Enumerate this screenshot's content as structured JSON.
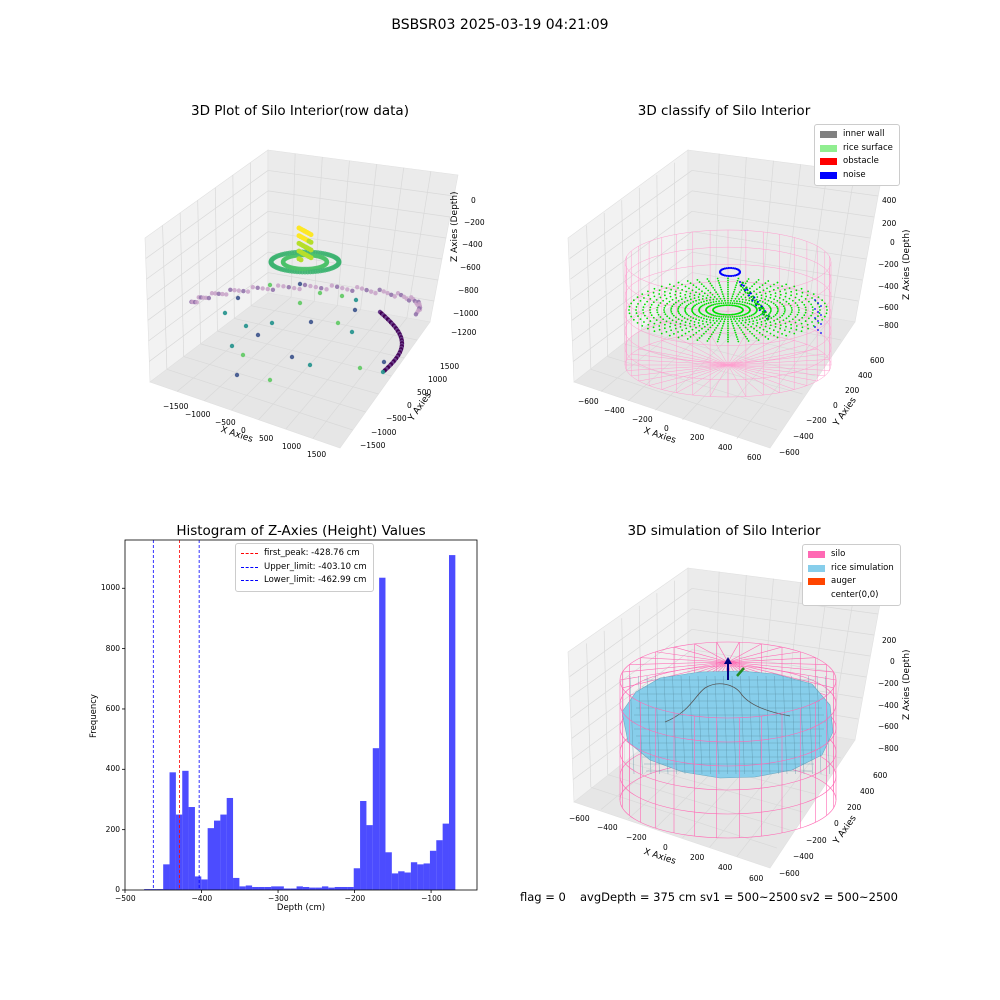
{
  "suptitle": "BSBSR03 2025-03-19 04:21:09",
  "footer": {
    "flag": "flag = 0",
    "avg_depth": "avgDepth = 375 cm",
    "sv1": "sv1 = 500~2500",
    "sv2": "sv2 = 500~2500"
  },
  "plot1": {
    "title": "3D Plot of Silo Interior(row data)",
    "xlabel": "X Axies",
    "ylabel": "Y Axies",
    "zlabel": "Z Axies (Depth)",
    "xticks": [
      "−1500",
      "−1000",
      "−500",
      "0",
      "500",
      "1000",
      "1500"
    ],
    "yticks": [
      "1500",
      "1000",
      "500",
      "0",
      "−500",
      "−1000",
      "−1500"
    ],
    "zticks": [
      "0",
      "−200",
      "−400",
      "−600",
      "−800",
      "−1000",
      "−1200"
    ]
  },
  "plot2": {
    "title": "3D classify of Silo Interior",
    "xlabel": "X Axies",
    "ylabel": "Y Axies",
    "zlabel": "Z Axies (Depth)",
    "xticks": [
      "−600",
      "−400",
      "−200",
      "0",
      "200",
      "400",
      "600"
    ],
    "yticks": [
      "600",
      "400",
      "200",
      "0",
      "−200",
      "−400",
      "−600"
    ],
    "zticks": [
      "400",
      "200",
      "0",
      "−200",
      "−400",
      "−600",
      "−800"
    ],
    "legend": [
      {
        "label": "inner wall",
        "color": "#808080"
      },
      {
        "label": "rice surface",
        "color": "#90ee90"
      },
      {
        "label": "obstacle",
        "color": "#ff0000"
      },
      {
        "label": "noise",
        "color": "#0000ff"
      }
    ]
  },
  "plot4": {
    "title": "3D simulation of Silo Interior",
    "xlabel": "X Axies",
    "ylabel": "Y Axies",
    "zlabel": "Z Axies (Depth)",
    "xticks": [
      "−600",
      "−400",
      "−200",
      "0",
      "200",
      "400",
      "600"
    ],
    "yticks": [
      "600",
      "400",
      "200",
      "0",
      "−200",
      "−400",
      "−600"
    ],
    "zticks": [
      "200",
      "0",
      "−200",
      "−400",
      "−600",
      "−800"
    ],
    "legend": [
      {
        "label": "silo",
        "color": "#ff69b4"
      },
      {
        "label": "rice simulation",
        "color": "#87ceeb"
      },
      {
        "label": "auger",
        "color": "#ff4500"
      },
      {
        "label": "center(0,0)",
        "color": ""
      }
    ]
  },
  "chart_data": {
    "type": "bar",
    "title": "Histogram of Z-Axies (Height) Values",
    "xlabel": "Depth (cm)",
    "ylabel": "Frequency",
    "xlim": [
      -500,
      -40
    ],
    "ylim": [
      0,
      1160
    ],
    "xticks": [
      -500,
      -400,
      -300,
      -200,
      -100
    ],
    "xtick_labels": [
      "−500",
      "−400",
      "−300",
      "−200",
      "−100"
    ],
    "yticks": [
      0,
      200,
      400,
      600,
      800,
      1000
    ],
    "bar_color": "#0000ff",
    "bin_start": -475,
    "bin_width": 8.3,
    "values": [
      3,
      3,
      3,
      85,
      390,
      250,
      395,
      275,
      45,
      35,
      205,
      230,
      250,
      305,
      40,
      12,
      15,
      10,
      10,
      10,
      12,
      12,
      5,
      5,
      12,
      10,
      8,
      8,
      12,
      8,
      10,
      10,
      10,
      72,
      295,
      215,
      470,
      1035,
      125,
      55,
      62,
      58,
      92,
      85,
      88,
      130,
      165,
      220,
      1110
    ],
    "lines": [
      {
        "label": "first_peak: -428.76 cm",
        "x": -428.76,
        "color": "#ff0000"
      },
      {
        "label": "Upper_limit: -403.10 cm",
        "x": -403.1,
        "color": "#0000ff"
      },
      {
        "label": "Lower_limit: -462.99 cm",
        "x": -462.99,
        "color": "#0000ff"
      }
    ]
  }
}
